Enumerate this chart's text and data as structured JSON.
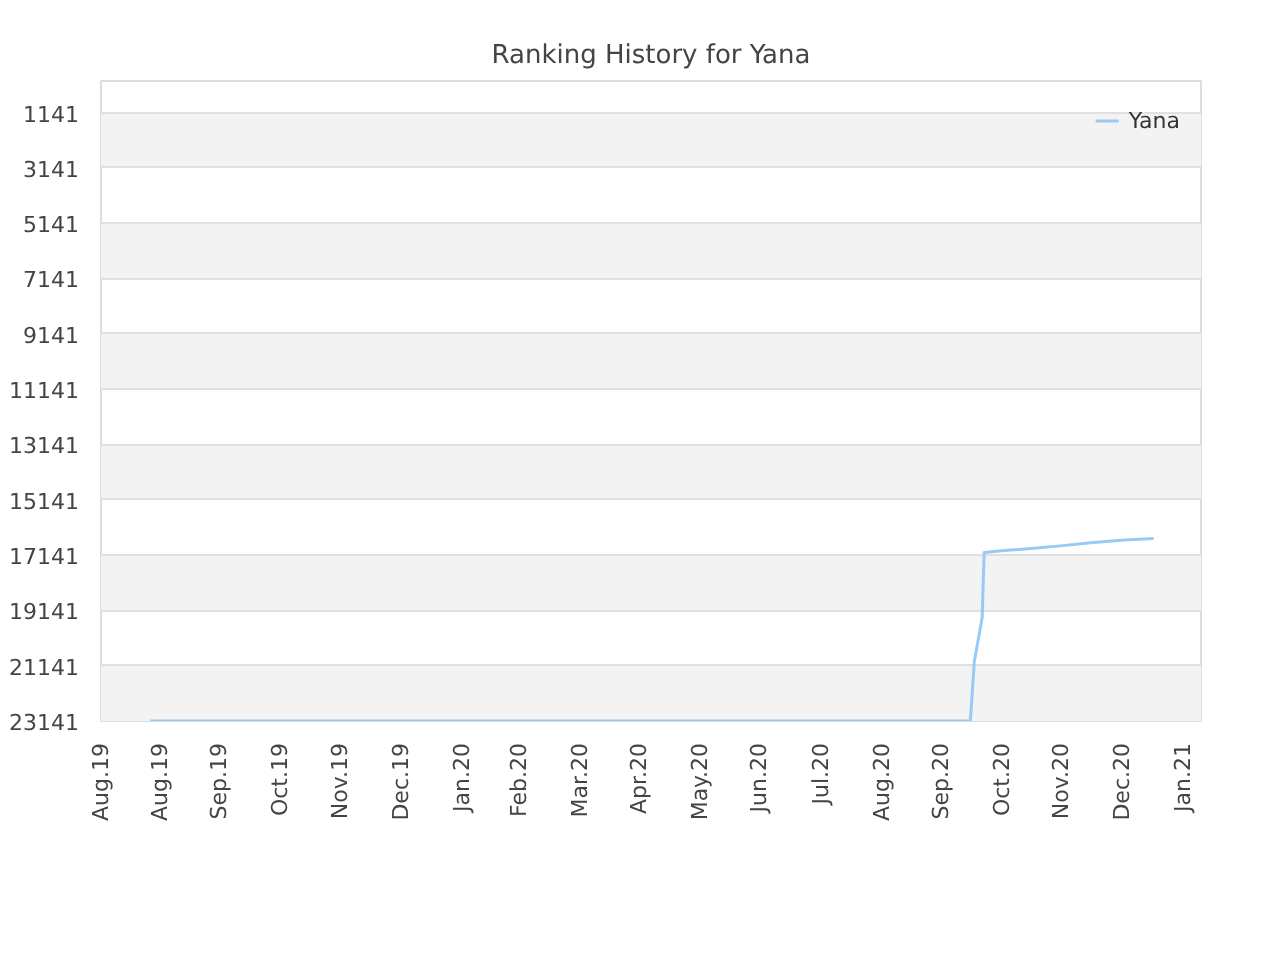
{
  "chart_data": {
    "type": "line",
    "title": "Ranking History for Yana",
    "x": [
      "2019-08-26",
      "2020-10-15",
      "2020-10-17",
      "2020-10-21",
      "2020-10-22",
      "2020-11-01",
      "2020-11-15",
      "2020-12-01",
      "2020-12-15",
      "2021-01-01",
      "2021-01-16"
    ],
    "series": [
      {
        "name": "Yana",
        "color": "#99c9f5",
        "values": [
          23141,
          23141,
          21000,
          19400,
          17050,
          16980,
          16900,
          16800,
          16700,
          16600,
          16540
        ]
      }
    ],
    "ylim": [
      23141,
      0
    ],
    "yticks": [
      1141,
      3141,
      5141,
      7141,
      9141,
      11141,
      13141,
      15141,
      17141,
      19141,
      21141,
      23141
    ],
    "xlim": [
      "2019-08-01",
      "2021-02-09"
    ],
    "xticks": [
      {
        "value": "2019-08-01",
        "label": "Aug.19"
      },
      {
        "value": "2019-08-31",
        "label": "Aug.19"
      },
      {
        "value": "2019-09-30",
        "label": "Sep.19"
      },
      {
        "value": "2019-10-31",
        "label": "Oct.19"
      },
      {
        "value": "2019-11-30",
        "label": "Nov.19"
      },
      {
        "value": "2019-12-31",
        "label": "Dec.19"
      },
      {
        "value": "2020-01-31",
        "label": "Jan.20"
      },
      {
        "value": "2020-02-29",
        "label": "Feb.20"
      },
      {
        "value": "2020-03-31",
        "label": "Mar.20"
      },
      {
        "value": "2020-04-30",
        "label": "Apr.20"
      },
      {
        "value": "2020-05-31",
        "label": "May.20"
      },
      {
        "value": "2020-06-30",
        "label": "Jun.20"
      },
      {
        "value": "2020-07-31",
        "label": "Jul.20"
      },
      {
        "value": "2020-08-31",
        "label": "Aug.20"
      },
      {
        "value": "2020-09-30",
        "label": "Sep.20"
      },
      {
        "value": "2020-10-31",
        "label": "Oct.20"
      },
      {
        "value": "2020-11-30",
        "label": "Nov.20"
      },
      {
        "value": "2020-12-31",
        "label": "Dec.20"
      },
      {
        "value": "2021-01-31",
        "label": "Jan.21"
      }
    ],
    "grid": "y",
    "legend": "top right",
    "marker": "none",
    "line_style": "solid"
  }
}
